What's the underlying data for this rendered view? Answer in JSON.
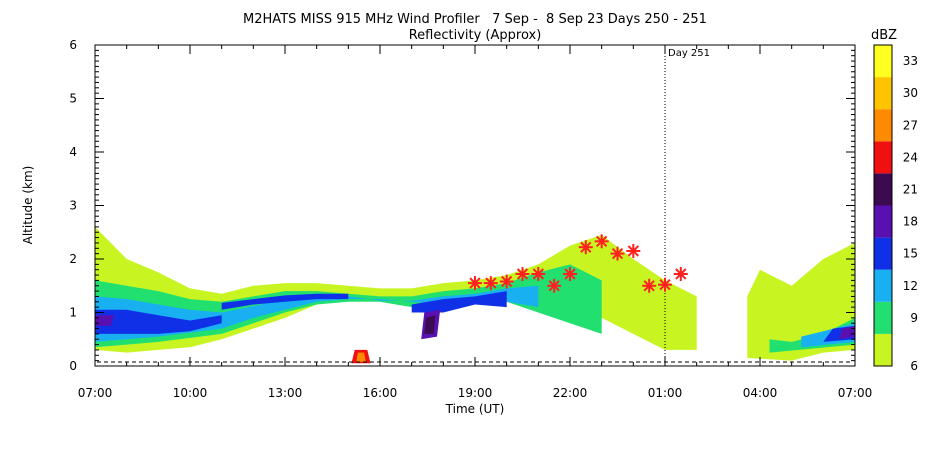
{
  "chart_data": {
    "type": "heatmap",
    "title": "M2HATS MISS 915 MHz Wind Profiler   7 Sep -  8 Sep 23 Days 250 - 251",
    "subtitle": "Reflectivity (Approx)",
    "xlabel": "Time (UT)",
    "ylabel": "Altitude (km)",
    "x_ticks": [
      "07:00",
      "10:00",
      "13:00",
      "16:00",
      "19:00",
      "22:00",
      "01:00",
      "04:00",
      "07:00"
    ],
    "x_range_hours": [
      0,
      24
    ],
    "y_ticks": [
      "0",
      "1",
      "2",
      "3",
      "4",
      "5",
      "6"
    ],
    "ylim": [
      0,
      6
    ],
    "day_marker": {
      "label": "Day 251",
      "x_hours": 18
    },
    "colorbar": {
      "title": "dBZ",
      "ticks": [
        "6",
        "9",
        "12",
        "15",
        "18",
        "21",
        "24",
        "27",
        "30",
        "33"
      ],
      "range": [
        6,
        36
      ],
      "bins": [
        {
          "from": 6,
          "to": 9,
          "color": "#c8f522"
        },
        {
          "from": 9,
          "to": 12,
          "color": "#22e070"
        },
        {
          "from": 12,
          "to": 15,
          "color": "#18b0f0"
        },
        {
          "from": 15,
          "to": 18,
          "color": "#1030e8"
        },
        {
          "from": 18,
          "to": 21,
          "color": "#5a10b0"
        },
        {
          "from": 21,
          "to": 24,
          "color": "#3c0a50"
        },
        {
          "from": 24,
          "to": 27,
          "color": "#f01010"
        },
        {
          "from": 27,
          "to": 30,
          "color": "#ff8a00"
        },
        {
          "from": 30,
          "to": 33,
          "color": "#ffc400"
        },
        {
          "from": 33,
          "to": 36,
          "color": "#ffff20"
        }
      ]
    },
    "markers": {
      "color": "#ff2020",
      "points": [
        {
          "x": 12.0,
          "y": 1.55
        },
        {
          "x": 12.5,
          "y": 1.55
        },
        {
          "x": 13.0,
          "y": 1.58
        },
        {
          "x": 13.5,
          "y": 1.72
        },
        {
          "x": 14.0,
          "y": 1.72
        },
        {
          "x": 14.5,
          "y": 1.5
        },
        {
          "x": 15.0,
          "y": 1.72
        },
        {
          "x": 15.5,
          "y": 2.22
        },
        {
          "x": 16.0,
          "y": 2.33
        },
        {
          "x": 16.5,
          "y": 2.1
        },
        {
          "x": 17.0,
          "y": 2.15
        },
        {
          "x": 17.5,
          "y": 1.5
        },
        {
          "x": 18.0,
          "y": 1.52
        },
        {
          "x": 18.5,
          "y": 1.72
        }
      ]
    },
    "reflectivity_layers": [
      {
        "dbz": 7.5,
        "polys": [
          [
            [
              0,
              0.3
            ],
            [
              1,
              0.25
            ],
            [
              2,
              0.3
            ],
            [
              3,
              0.35
            ],
            [
              4,
              0.5
            ],
            [
              5,
              0.7
            ],
            [
              6,
              0.9
            ],
            [
              7,
              1.15
            ],
            [
              8,
              1.3
            ],
            [
              9,
              1.3
            ],
            [
              10,
              1.2
            ],
            [
              11,
              1.2
            ],
            [
              12,
              1.2
            ],
            [
              13,
              1.3
            ],
            [
              14,
              1.4
            ],
            [
              15,
              1.3
            ],
            [
              16,
              0.9
            ],
            [
              17,
              0.6
            ],
            [
              18,
              0.3
            ],
            [
              19,
              0.3
            ],
            [
              19,
              1.3
            ],
            [
              18,
              1.6
            ],
            [
              17,
              2.0
            ],
            [
              16,
              2.45
            ],
            [
              15,
              2.25
            ],
            [
              14,
              1.9
            ],
            [
              13,
              1.7
            ],
            [
              12,
              1.6
            ],
            [
              11,
              1.55
            ],
            [
              10,
              1.45
            ],
            [
              9,
              1.45
            ],
            [
              8,
              1.5
            ],
            [
              7,
              1.55
            ],
            [
              6,
              1.55
            ],
            [
              5,
              1.5
            ],
            [
              4,
              1.35
            ],
            [
              3,
              1.45
            ],
            [
              2,
              1.75
            ],
            [
              1,
              2.0
            ],
            [
              0,
              2.6
            ]
          ],
          [
            [
              20.6,
              0.15
            ],
            [
              22,
              0.1
            ],
            [
              23,
              0.25
            ],
            [
              24,
              0.3
            ],
            [
              24,
              2.3
            ],
            [
              23,
              2.0
            ],
            [
              22,
              1.5
            ],
            [
              21,
              1.8
            ],
            [
              20.6,
              1.3
            ]
          ]
        ]
      },
      {
        "dbz": 10.5,
        "polys": [
          [
            [
              0,
              0.35
            ],
            [
              2,
              0.45
            ],
            [
              4,
              0.6
            ],
            [
              5,
              0.8
            ],
            [
              6,
              1.0
            ],
            [
              7,
              1.15
            ],
            [
              8,
              1.2
            ],
            [
              9,
              1.2
            ],
            [
              10,
              1.1
            ],
            [
              11,
              1.1
            ],
            [
              12,
              1.2
            ],
            [
              13,
              1.2
            ],
            [
              14,
              1.0
            ],
            [
              15,
              0.8
            ],
            [
              16,
              0.6
            ],
            [
              16,
              1.6
            ],
            [
              15,
              1.9
            ],
            [
              14,
              1.75
            ],
            [
              13,
              1.55
            ],
            [
              12,
              1.45
            ],
            [
              11,
              1.4
            ],
            [
              10,
              1.3
            ],
            [
              9,
              1.3
            ],
            [
              8,
              1.35
            ],
            [
              7,
              1.4
            ],
            [
              6,
              1.4
            ],
            [
              5,
              1.3
            ],
            [
              4,
              1.2
            ],
            [
              3,
              1.25
            ],
            [
              2,
              1.4
            ],
            [
              1,
              1.5
            ],
            [
              0,
              1.6
            ]
          ],
          [
            [
              21.3,
              0.25
            ],
            [
              24,
              0.4
            ],
            [
              24,
              0.9
            ],
            [
              23,
              0.6
            ],
            [
              22,
              0.45
            ],
            [
              21.3,
              0.5
            ]
          ]
        ]
      },
      {
        "dbz": 13.5,
        "polys": [
          [
            [
              0,
              0.45
            ],
            [
              2,
              0.55
            ],
            [
              4,
              0.7
            ],
            [
              5,
              0.9
            ],
            [
              6,
              1.05
            ],
            [
              7,
              1.2
            ],
            [
              8,
              1.25
            ],
            [
              9,
              1.25
            ],
            [
              10,
              1.2
            ],
            [
              11,
              1.15
            ],
            [
              12,
              1.25
            ],
            [
              13,
              1.2
            ],
            [
              14,
              1.1
            ],
            [
              14,
              1.5
            ],
            [
              13,
              1.45
            ],
            [
              12,
              1.35
            ],
            [
              11,
              1.3
            ],
            [
              10,
              1.22
            ],
            [
              9,
              1.22
            ],
            [
              8,
              1.3
            ],
            [
              7,
              1.3
            ],
            [
              6,
              1.25
            ],
            [
              5,
              1.12
            ],
            [
              4,
              1.0
            ],
            [
              3,
              1.05
            ],
            [
              2,
              1.15
            ],
            [
              1,
              1.25
            ],
            [
              0,
              1.3
            ]
          ],
          [
            [
              22.3,
              0.35
            ],
            [
              24,
              0.45
            ],
            [
              24,
              0.8
            ],
            [
              23,
              0.65
            ],
            [
              22.3,
              0.55
            ]
          ]
        ]
      },
      {
        "dbz": 16.5,
        "polys": [
          [
            [
              0,
              0.6
            ],
            [
              2,
              0.6
            ],
            [
              3,
              0.65
            ],
            [
              4,
              0.8
            ],
            [
              4,
              0.95
            ],
            [
              3,
              0.85
            ],
            [
              2,
              0.95
            ],
            [
              1,
              1.05
            ],
            [
              0,
              1.05
            ]
          ],
          [
            [
              4,
              1.05
            ],
            [
              5,
              1.15
            ],
            [
              6,
              1.2
            ],
            [
              7,
              1.25
            ],
            [
              8,
              1.25
            ],
            [
              8,
              1.35
            ],
            [
              7,
              1.35
            ],
            [
              6,
              1.32
            ],
            [
              5,
              1.25
            ],
            [
              4,
              1.18
            ]
          ],
          [
            [
              10,
              1.0
            ],
            [
              11,
              1.0
            ],
            [
              12,
              1.15
            ],
            [
              13,
              1.1
            ],
            [
              13,
              1.4
            ],
            [
              12,
              1.3
            ],
            [
              11,
              1.25
            ],
            [
              10,
              1.15
            ]
          ],
          [
            [
              23,
              0.45
            ],
            [
              24,
              0.5
            ],
            [
              24,
              0.75
            ],
            [
              23.3,
              0.7
            ]
          ]
        ]
      },
      {
        "dbz": 19.5,
        "polys": [
          [
            [
              0,
              0.75
            ],
            [
              0.5,
              0.75
            ],
            [
              0.6,
              0.95
            ],
            [
              0,
              0.95
            ]
          ],
          [
            [
              10.3,
              0.5
            ],
            [
              10.8,
              0.55
            ],
            [
              10.9,
              1.05
            ],
            [
              10.4,
              1.0
            ]
          ],
          [
            [
              23.5,
              0.5
            ],
            [
              24,
              0.55
            ],
            [
              24,
              0.75
            ],
            [
              23.6,
              0.7
            ]
          ]
        ]
      },
      {
        "dbz": 22.5,
        "polys": [
          [
            [
              10.4,
              0.6
            ],
            [
              10.7,
              0.6
            ],
            [
              10.75,
              0.95
            ],
            [
              10.45,
              0.9
            ]
          ]
        ]
      },
      {
        "dbz": 25.5,
        "polys": [
          [
            [
              8.1,
              0.05
            ],
            [
              8.7,
              0.05
            ],
            [
              8.6,
              0.3
            ],
            [
              8.2,
              0.3
            ]
          ]
        ]
      },
      {
        "dbz": 28.5,
        "polys": [
          [
            [
              8.25,
              0.08
            ],
            [
              8.55,
              0.08
            ],
            [
              8.5,
              0.25
            ],
            [
              8.3,
              0.25
            ]
          ]
        ]
      }
    ],
    "grid": false,
    "legend": "colorbar-right"
  }
}
